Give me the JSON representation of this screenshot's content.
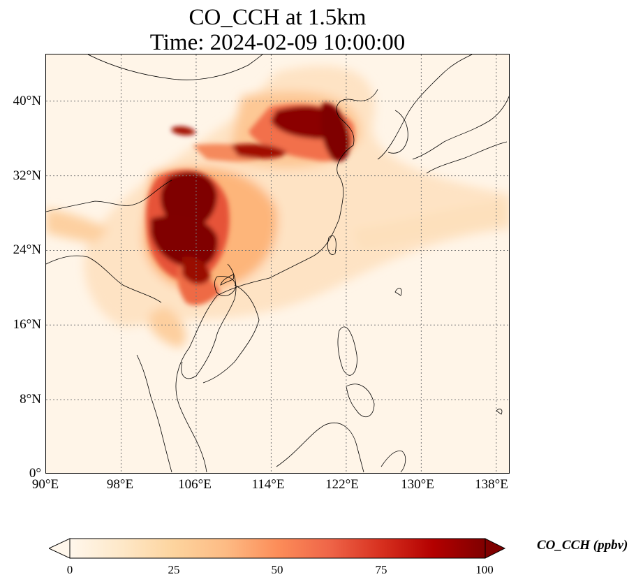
{
  "title": {
    "line1": "CO_CCH at 1.5km",
    "line2": "Time: 2024-02-09 10:00:00"
  },
  "map": {
    "extent": {
      "lon_min": 90,
      "lon_max": 139.5,
      "lat_min": 0,
      "lat_max": 45
    },
    "gridlines": true,
    "x_ticks": [
      "90°E",
      "98°E",
      "106°E",
      "114°E",
      "122°E",
      "130°E",
      "138°E"
    ],
    "y_ticks": [
      "0°",
      "8°N",
      "16°N",
      "24°N",
      "32°N",
      "40°N"
    ]
  },
  "colorbar": {
    "label": "CO_CCH (ppbv)",
    "ticks": [
      "0",
      "25",
      "50",
      "75",
      "100"
    ],
    "min": 0,
    "max": 100,
    "colormap": [
      "#fff7ec",
      "#fee8c8",
      "#fdd49e",
      "#fdbb84",
      "#fc8d59",
      "#ef6548",
      "#d7301f",
      "#b30000",
      "#7f0000"
    ],
    "extend": "both"
  }
}
